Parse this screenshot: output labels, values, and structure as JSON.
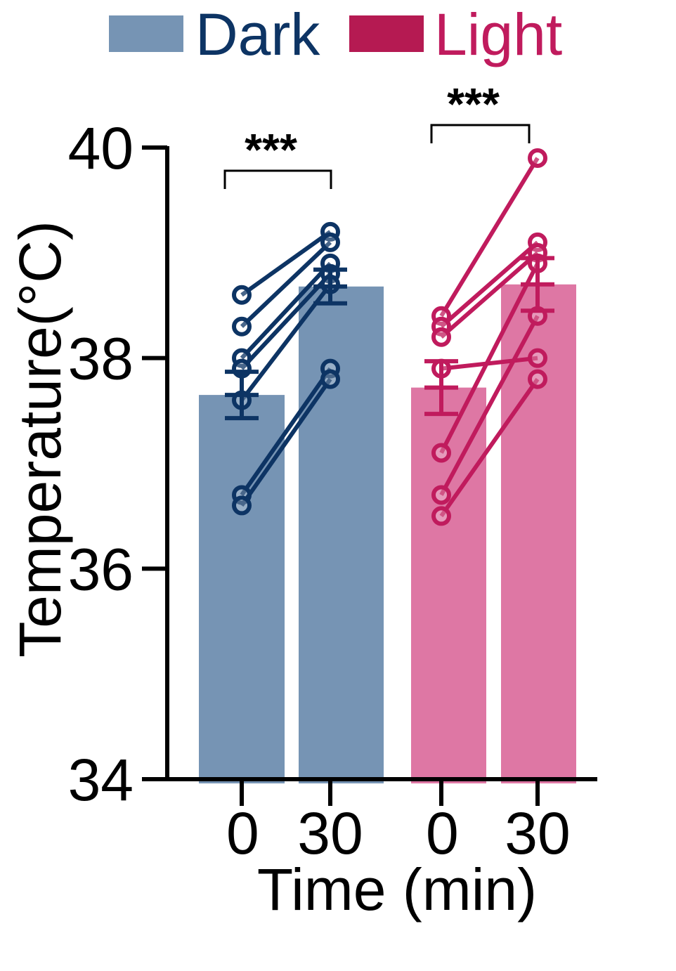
{
  "chart_data": {
    "type": "bar",
    "xlabel": "Time (min)",
    "ylabel": "Temperature(°C)",
    "ylim": [
      34,
      40
    ],
    "yticks": [
      "34",
      "36",
      "38",
      "40"
    ],
    "legend": {
      "position": "top"
    },
    "grid": false,
    "groups": [
      {
        "name": "Dark",
        "color_bar": "#7694b4",
        "color_line": "#0d3464",
        "categories": [
          "0",
          "30"
        ],
        "means": [
          37.65,
          38.68
        ],
        "sem": [
          0.22,
          0.16
        ],
        "significance": "***",
        "pairs": [
          [
            38.6,
            39.2
          ],
          [
            38.3,
            39.1
          ],
          [
            38.0,
            38.9
          ],
          [
            37.9,
            38.8
          ],
          [
            37.6,
            38.7
          ],
          [
            36.7,
            37.9
          ],
          [
            36.6,
            37.8
          ]
        ]
      },
      {
        "name": "Light",
        "color_bar": "#de77a4",
        "color_line": "#c01b5d",
        "categories": [
          "0",
          "30"
        ],
        "means": [
          37.72,
          38.7
        ],
        "sem": [
          0.25,
          0.25
        ],
        "significance": "***",
        "pairs": [
          [
            38.4,
            39.9
          ],
          [
            38.3,
            39.1
          ],
          [
            38.2,
            39.0
          ],
          [
            37.9,
            38.0
          ],
          [
            37.1,
            38.9
          ],
          [
            36.7,
            38.4
          ],
          [
            36.5,
            37.8
          ]
        ]
      }
    ]
  }
}
